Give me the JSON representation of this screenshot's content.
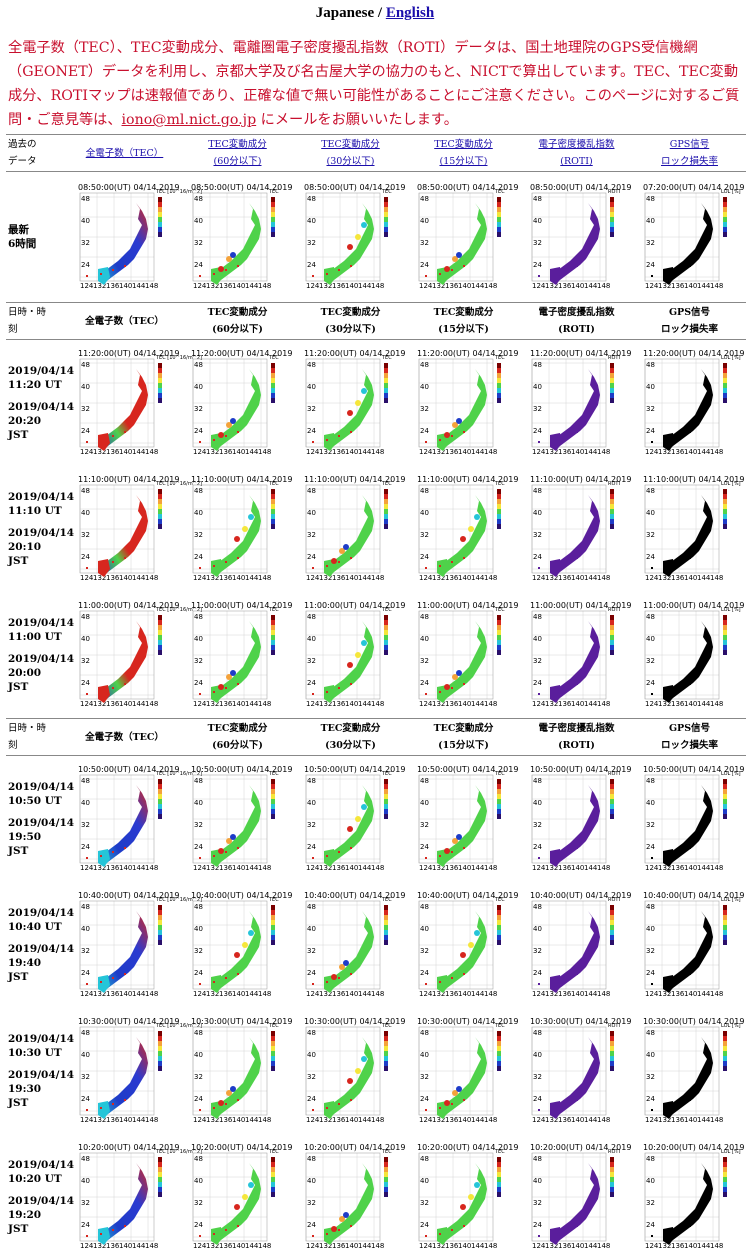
{
  "lang": {
    "current": "Japanese",
    "sep": " / ",
    "other": "English"
  },
  "intro": {
    "text_before": "全電子数（TEC）、TEC変動成分、電離圏電子密度擾乱指数（ROTI）データは、国土地理院のGPS受信機網（GEONET）データを利用し、京都大学及び名古屋大学の協力のもと、NICTで算出しています。TEC、TEC変動成分、ROTIマップは速報値であり、正確な値で無い可能性があることにご注意ください。このページに対するご質問・ご意見等は、",
    "email": "iono@ml.nict.go.jp",
    "text_after": " にメールをお願いいたします。"
  },
  "first_header": {
    "label": [
      "過去の",
      "データ"
    ],
    "cols": [
      [
        "全電子数（TEC）",
        ""
      ],
      [
        "TEC変動成分",
        "(60分以下)"
      ],
      [
        "TEC変動成分",
        "(30分以下)"
      ],
      [
        "TEC変動成分",
        "(15分以下)"
      ],
      [
        "電子密度擾乱指数",
        "(ROTI)"
      ],
      [
        "GPS信号",
        "ロック損失率"
      ]
    ]
  },
  "header": {
    "label": [
      "日時・時",
      "刻"
    ],
    "cols": [
      [
        "全電子数（TEC）",
        ""
      ],
      [
        "TEC変動成分",
        "(60分以下)"
      ],
      [
        "TEC変動成分",
        "(30分以下)"
      ],
      [
        "TEC変動成分",
        "(15分以下)"
      ],
      [
        "電子密度擾乱指数",
        "(ROTI)"
      ],
      [
        "GPS信号",
        "ロック損失率"
      ]
    ]
  },
  "latest": {
    "label": [
      "最新",
      "6時間"
    ],
    "titles": [
      "08:50:00(UT) 04/14 2019",
      "08:50:00(UT) 04/14 2019",
      "08:50:00(UT) 04/14 2019",
      "08:50:00(UT) 04/14 2019",
      "08:50:00(UT) 04/14 2019",
      "07:20:00(UT) 04/14 2019"
    ]
  },
  "groups": [
    {
      "rows": [
        {
          "ut": [
            "2019/04/14",
            "11:20 UT"
          ],
          "jst": [
            "2019/04/14",
            "20:20",
            "JST"
          ],
          "time": "11:20:00(UT) 04/14 2019"
        },
        {
          "ut": [
            "2019/04/14",
            "11:10 UT"
          ],
          "jst": [
            "2019/04/14",
            "20:10",
            "JST"
          ],
          "time": "11:10:00(UT) 04/14 2019"
        },
        {
          "ut": [
            "2019/04/14",
            "11:00 UT"
          ],
          "jst": [
            "2019/04/14",
            "20:00",
            "JST"
          ],
          "time": "11:00:00(UT) 04/14 2019"
        }
      ]
    },
    {
      "rows": [
        {
          "ut": [
            "2019/04/14",
            "10:50 UT"
          ],
          "jst": [
            "2019/04/14",
            "19:50",
            "JST"
          ],
          "time": "10:50:00(UT) 04/14 2019"
        },
        {
          "ut": [
            "2019/04/14",
            "10:40 UT"
          ],
          "jst": [
            "2019/04/14",
            "19:40",
            "JST"
          ],
          "time": "10:40:00(UT) 04/14 2019"
        },
        {
          "ut": [
            "2019/04/14",
            "10:30 UT"
          ],
          "jst": [
            "2019/04/14",
            "19:30",
            "JST"
          ],
          "time": "10:30:00(UT) 04/14 2019"
        },
        {
          "ut": [
            "2019/04/14",
            "10:20 UT"
          ],
          "jst": [
            "2019/04/14",
            "19:20",
            "JST"
          ],
          "time": "10:20:00(UT) 04/14 2019"
        }
      ]
    }
  ],
  "map_ticks": {
    "lat": [
      "48",
      "40",
      "32",
      "24"
    ],
    "lon": [
      "124",
      "132",
      "136",
      "140",
      "144",
      "148"
    ]
  },
  "scale_labels": [
    "TEC [10^16/m^2]",
    "TEC",
    "TEC",
    "TEC",
    "ROTI",
    "LOL [%]"
  ],
  "colors": {
    "link": "#1a0dab",
    "intro": "#c8102e",
    "tec_high": "#d7261e",
    "tec_low": "#1e3cc8",
    "mid": "#4fd24a",
    "roti": "#5a1e9c",
    "lol": "#000000"
  }
}
